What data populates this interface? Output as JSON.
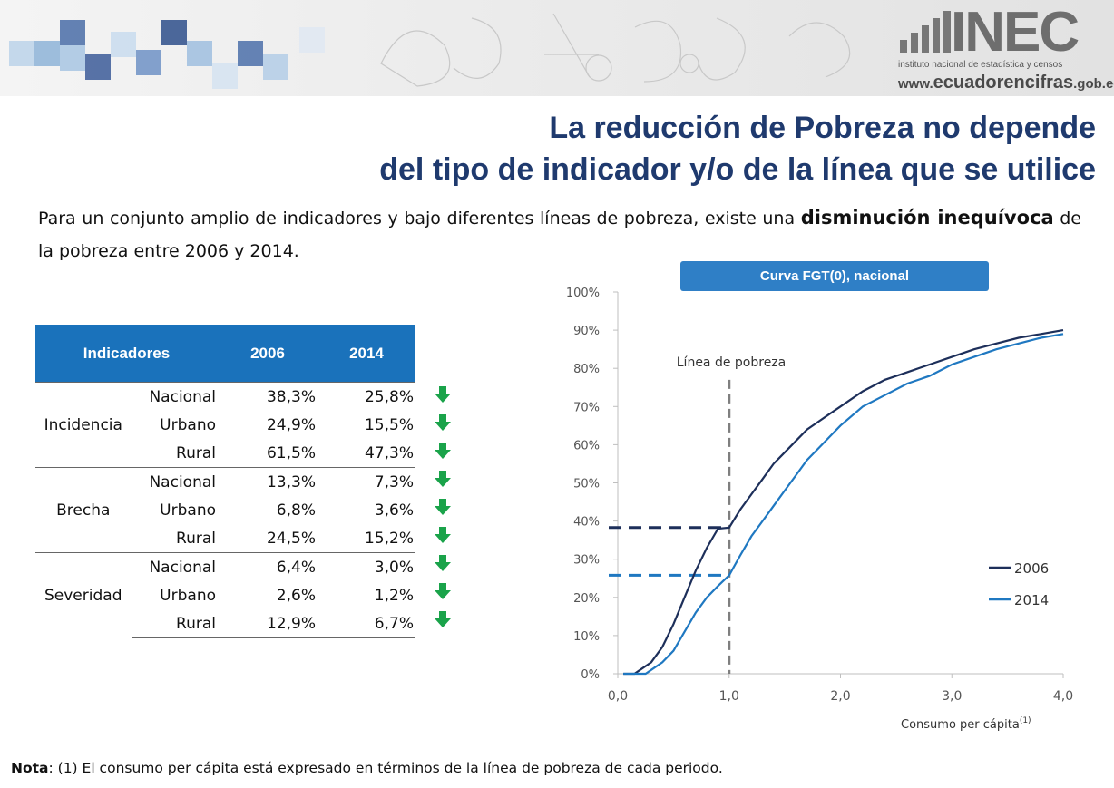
{
  "header": {
    "logo_text": "INEC",
    "logo_subtitle": "instituto nacional de estadística y censos",
    "site_prefix": "www.",
    "site_main": "ecuadorencifras",
    "site_suffix": ".gob.ec"
  },
  "title": {
    "line1": "La reducción de Pobreza no depende",
    "line2": "del tipo de indicador y/o de la línea que se utilice"
  },
  "intro": {
    "part1": "Para un conjunto amplio de indicadores y bajo diferentes líneas de pobreza, existe una ",
    "bold": "disminución inequívoca",
    "part2": " de la pobreza entre 2006 y 2014."
  },
  "table": {
    "headers": [
      "Indicadores",
      "2006",
      "2014"
    ],
    "groups": [
      {
        "name": "Incidencia",
        "rows": [
          {
            "label": "Nacional",
            "v2006": "38,3%",
            "v2014": "25,8%"
          },
          {
            "label": "Urbano",
            "v2006": "24,9%",
            "v2014": "15,5%"
          },
          {
            "label": "Rural",
            "v2006": "61,5%",
            "v2014": "47,3%"
          }
        ]
      },
      {
        "name": "Brecha",
        "rows": [
          {
            "label": "Nacional",
            "v2006": "13,3%",
            "v2014": "7,3%"
          },
          {
            "label": "Urbano",
            "v2006": "6,8%",
            "v2014": "3,6%"
          },
          {
            "label": "Rural",
            "v2006": "24,5%",
            "v2014": "15,2%"
          }
        ]
      },
      {
        "name": "Severidad",
        "rows": [
          {
            "label": "Nacional",
            "v2006": "6,4%",
            "v2014": "3,0%"
          },
          {
            "label": "Urbano",
            "v2006": "2,6%",
            "v2014": "1,2%"
          },
          {
            "label": "Rural",
            "v2006": "12,9%",
            "v2014": "6,7%"
          }
        ]
      }
    ],
    "arrow_icon": "arrow-down-icon",
    "arrow_color": "#1aa34a"
  },
  "chart_data": {
    "type": "line",
    "title": "Curva FGT(0), nacional",
    "xlabel": "Consumo per cápita",
    "xlabel_sup": "(1)",
    "ylabel": "",
    "xlim": [
      0,
      4
    ],
    "ylim": [
      0,
      100
    ],
    "xticks": [
      "0,0",
      "1,0",
      "2,0",
      "3,0",
      "4,0"
    ],
    "yticks": [
      "0%",
      "10%",
      "20%",
      "30%",
      "40%",
      "50%",
      "60%",
      "70%",
      "80%",
      "90%",
      "100%"
    ],
    "grid": false,
    "legend_position": "bottom-right",
    "annotation": "Línea de pobreza",
    "poverty_line_x": 1.0,
    "series": [
      {
        "name": "2006",
        "color": "#1d2f5a",
        "x": [
          0.05,
          0.15,
          0.2,
          0.3,
          0.4,
          0.5,
          0.6,
          0.7,
          0.8,
          0.9,
          1.0,
          1.1,
          1.2,
          1.3,
          1.4,
          1.5,
          1.6,
          1.7,
          1.8,
          1.9,
          2.0,
          2.2,
          2.4,
          2.6,
          2.8,
          3.0,
          3.2,
          3.4,
          3.6,
          3.8,
          4.0
        ],
        "y": [
          0,
          0,
          1,
          3,
          7,
          13,
          20,
          27,
          33,
          38,
          38.3,
          43,
          47,
          51,
          55,
          58,
          61,
          64,
          66,
          68,
          70,
          74,
          77,
          79,
          81,
          83,
          85,
          86.5,
          88,
          89,
          90
        ]
      },
      {
        "name": "2014",
        "color": "#1f78c1",
        "x": [
          0.05,
          0.25,
          0.3,
          0.4,
          0.5,
          0.6,
          0.7,
          0.8,
          0.9,
          1.0,
          1.1,
          1.2,
          1.3,
          1.4,
          1.5,
          1.6,
          1.7,
          1.8,
          1.9,
          2.0,
          2.2,
          2.4,
          2.6,
          2.8,
          3.0,
          3.2,
          3.4,
          3.6,
          3.8,
          4.0
        ],
        "y": [
          0,
          0,
          1,
          3,
          6,
          11,
          16,
          20,
          23,
          25.8,
          31,
          36,
          40,
          44,
          48,
          52,
          56,
          59,
          62,
          65,
          70,
          73,
          76,
          78,
          81,
          83,
          85,
          86.5,
          88,
          89
        ]
      }
    ],
    "hlines": [
      {
        "y": 38.3,
        "color": "#1d2f5a"
      },
      {
        "y": 25.8,
        "color": "#1f78c1"
      }
    ]
  },
  "note": {
    "label": "Nota",
    "text": ": (1) El consumo per cápita está expresado en términos de la línea de pobreza de cada periodo."
  }
}
